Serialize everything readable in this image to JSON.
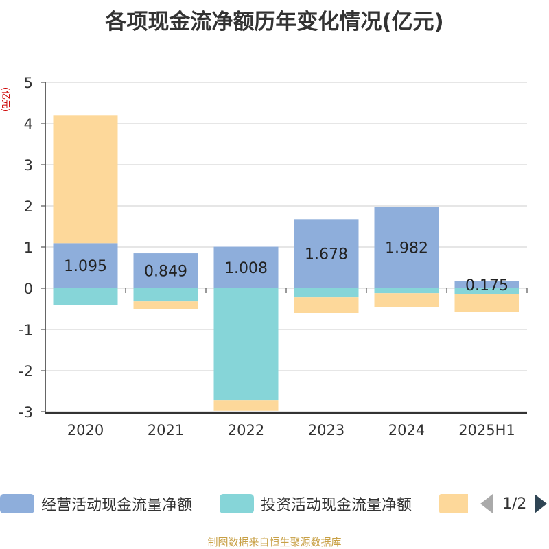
{
  "title": "各项现金流净额历年变化情况(亿元)",
  "source_note": "制图数据来自恒生聚源数据库",
  "legend": {
    "items": [
      {
        "label": "经营活动现金流量净额",
        "color": "#8eaedb"
      },
      {
        "label": "投资活动现金流量净额",
        "color": "#86d5d8"
      },
      {
        "label": "",
        "color": "#fdd89a"
      }
    ],
    "page_text": "1/2"
  },
  "chart_data": {
    "type": "bar",
    "stacked": true,
    "unit_label": "(亿元)",
    "categories": [
      "2020",
      "2021",
      "2022",
      "2023",
      "2024",
      "2025H1"
    ],
    "ylim": [
      -3,
      5
    ],
    "yticks": [
      5,
      4,
      3,
      2,
      1,
      0,
      -1,
      -2,
      -3
    ],
    "grid": true,
    "series": [
      {
        "name": "经营活动现金流量净额",
        "color": "#8eaedb",
        "values": [
          1.095,
          0.849,
          1.008,
          1.678,
          1.982,
          0.175
        ],
        "labels": [
          "1.095",
          "0.849",
          "1.008",
          "1.678",
          "1.982",
          "0.175"
        ]
      },
      {
        "name": "投资活动现金流量净额",
        "color": "#86d5d8",
        "values": [
          -0.4,
          -0.32,
          -2.72,
          -0.22,
          -0.12,
          -0.15
        ]
      },
      {
        "color": "#fdd89a",
        "values": [
          3.1,
          -0.18,
          -0.26,
          -0.38,
          -0.33,
          -0.42
        ]
      }
    ]
  }
}
